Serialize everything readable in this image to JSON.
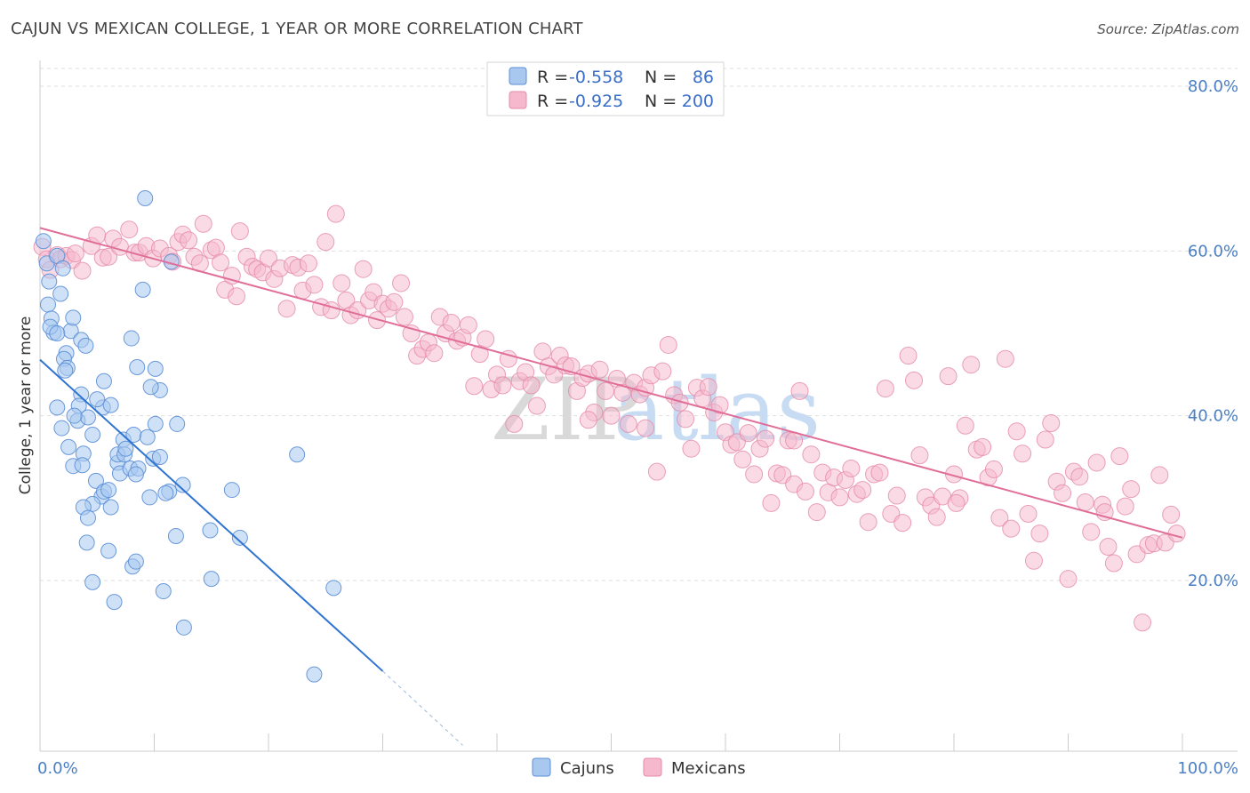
{
  "header": {
    "title": "CAJUN VS MEXICAN COLLEGE, 1 YEAR OR MORE CORRELATION CHART",
    "source": "Source: ZipAtlas.com"
  },
  "colors": {
    "cajun_fill": "#a8c8f0",
    "cajun_stroke": "#5b8fd6",
    "cajun_line": "#2f74d0",
    "mexican_fill": "#f5b8cc",
    "mexican_stroke": "#e58aa8",
    "mexican_line": "#e06e98",
    "grid": "#dddddd",
    "tick_text": "#4a7fc4"
  },
  "legend": {
    "rows": [
      {
        "r_label": "R =",
        "r_value": "-0.558",
        "n_label": "N =",
        "n_value": "86"
      },
      {
        "r_label": "R =",
        "r_value": "-0.925",
        "n_label": "N =",
        "n_value": "200"
      }
    ]
  },
  "watermark": {
    "zip": "ZIP",
    "atlas": "atlas"
  },
  "chart_data": {
    "type": "scatter",
    "title": "CAJUN VS MEXICAN COLLEGE, 1 YEAR OR MORE CORRELATION CHART",
    "xlabel": "",
    "ylabel": "College, 1 year or more",
    "xlim": [
      0,
      100
    ],
    "ylim": [
      0,
      84
    ],
    "x_tick_labels": [
      "0.0%",
      "100.0%"
    ],
    "y_ticks": [
      20,
      40,
      60,
      80
    ],
    "y_tick_labels": [
      "20.0%",
      "40.0%",
      "60.0%",
      "80.0%"
    ],
    "grid": true,
    "legend_position": "top-center",
    "bottom_legend": [
      "Cajuns",
      "Mexicans"
    ],
    "series": [
      {
        "name": "Cajuns",
        "r": -0.558,
        "n": 86,
        "trend": {
          "x0": 0,
          "y0": 46.8,
          "x1": 30,
          "y1": 9.0,
          "dash_x1": 37,
          "dash_y1": 0
        },
        "points": [
          [
            0.3,
            61.2
          ],
          [
            0.6,
            58.5
          ],
          [
            0.8,
            56.3
          ],
          [
            0.7,
            53.5
          ],
          [
            1.0,
            51.8
          ],
          [
            1.2,
            50.1
          ],
          [
            0.9,
            50.8
          ],
          [
            1.8,
            54.8
          ],
          [
            1.5,
            59.4
          ],
          [
            2.0,
            57.9
          ],
          [
            2.3,
            47.6
          ],
          [
            2.1,
            46.9
          ],
          [
            2.4,
            45.8
          ],
          [
            2.7,
            50.3
          ],
          [
            2.9,
            51.9
          ],
          [
            3.6,
            49.2
          ],
          [
            4.0,
            48.5
          ],
          [
            1.5,
            41.0
          ],
          [
            1.9,
            38.5
          ],
          [
            2.5,
            36.2
          ],
          [
            2.9,
            33.9
          ],
          [
            3.3,
            39.4
          ],
          [
            3.6,
            42.6
          ],
          [
            3.4,
            41.2
          ],
          [
            4.2,
            39.8
          ],
          [
            4.6,
            37.7
          ],
          [
            3.8,
            35.4
          ],
          [
            3.7,
            34.0
          ],
          [
            4.9,
            32.1
          ],
          [
            5.4,
            30.2
          ],
          [
            5.6,
            30.8
          ],
          [
            4.6,
            29.3
          ],
          [
            3.8,
            28.9
          ],
          [
            4.2,
            27.6
          ],
          [
            6.2,
            28.9
          ],
          [
            4.1,
            24.6
          ],
          [
            6.0,
            23.6
          ],
          [
            4.6,
            19.8
          ],
          [
            6.5,
            17.4
          ],
          [
            5.5,
            41.0
          ],
          [
            5.6,
            44.2
          ],
          [
            6.8,
            34.3
          ],
          [
            6.8,
            35.3
          ],
          [
            7.4,
            35.3
          ],
          [
            7.3,
            37.1
          ],
          [
            7.0,
            33.0
          ],
          [
            7.9,
            33.6
          ],
          [
            8.6,
            33.6
          ],
          [
            8.4,
            32.9
          ],
          [
            8.2,
            37.7
          ],
          [
            9.4,
            37.4
          ],
          [
            8.1,
            21.7
          ],
          [
            8.4,
            22.3
          ],
          [
            9.9,
            34.8
          ],
          [
            10.5,
            35.0
          ],
          [
            9.6,
            30.1
          ],
          [
            11.3,
            30.8
          ],
          [
            11.0,
            30.6
          ],
          [
            12.5,
            31.6
          ],
          [
            10.8,
            18.7
          ],
          [
            12.6,
            14.3
          ],
          [
            11.9,
            25.4
          ],
          [
            14.9,
            26.1
          ],
          [
            15.0,
            20.2
          ],
          [
            17.5,
            25.2
          ],
          [
            16.8,
            31.0
          ],
          [
            22.5,
            35.3
          ],
          [
            25.7,
            19.1
          ],
          [
            24.0,
            8.6
          ],
          [
            10.1,
            39.0
          ],
          [
            10.5,
            43.1
          ],
          [
            10.1,
            45.7
          ],
          [
            8.5,
            45.9
          ],
          [
            8.0,
            49.4
          ],
          [
            9.7,
            43.5
          ],
          [
            11.5,
            58.7
          ],
          [
            9.0,
            55.3
          ],
          [
            9.2,
            66.4
          ],
          [
            6.2,
            41.3
          ],
          [
            7.5,
            36.0
          ],
          [
            5.0,
            42.0
          ],
          [
            3.0,
            40.0
          ],
          [
            2.2,
            45.5
          ],
          [
            6.0,
            31.0
          ],
          [
            12.0,
            39.0
          ],
          [
            1.5,
            50.0
          ]
        ]
      },
      {
        "name": "Mexicans",
        "r": -0.925,
        "n": 200,
        "trend": {
          "x0": 0,
          "y0": 62.8,
          "x1": 100,
          "y1": 25.2
        },
        "points": [
          [
            0.2,
            60.5
          ],
          [
            0.6,
            59.0
          ],
          [
            0.9,
            57.7
          ],
          [
            1.5,
            59.5
          ],
          [
            1.8,
            59.0
          ],
          [
            2.3,
            59.4
          ],
          [
            2.8,
            58.9
          ],
          [
            3.1,
            59.7
          ],
          [
            3.7,
            57.6
          ],
          [
            4.5,
            60.6
          ],
          [
            5.0,
            61.9
          ],
          [
            5.5,
            59.2
          ],
          [
            6.0,
            59.3
          ],
          [
            6.4,
            61.5
          ],
          [
            7.0,
            60.5
          ],
          [
            7.8,
            62.6
          ],
          [
            8.3,
            59.8
          ],
          [
            8.7,
            59.8
          ],
          [
            9.3,
            60.6
          ],
          [
            9.9,
            59.1
          ],
          [
            10.5,
            60.3
          ],
          [
            11.3,
            59.4
          ],
          [
            11.6,
            58.7
          ],
          [
            12.1,
            61.1
          ],
          [
            12.5,
            62.0
          ],
          [
            13.0,
            61.3
          ],
          [
            13.5,
            59.3
          ],
          [
            14.0,
            58.5
          ],
          [
            14.3,
            63.3
          ],
          [
            15.0,
            60.1
          ],
          [
            15.4,
            60.4
          ],
          [
            15.8,
            58.6
          ],
          [
            16.2,
            55.3
          ],
          [
            16.8,
            57.0
          ],
          [
            17.2,
            54.5
          ],
          [
            17.5,
            62.4
          ],
          [
            18.1,
            59.3
          ],
          [
            18.6,
            58.1
          ],
          [
            19.0,
            57.8
          ],
          [
            19.5,
            57.4
          ],
          [
            20.0,
            59.1
          ],
          [
            20.5,
            56.6
          ],
          [
            21.0,
            57.9
          ],
          [
            21.6,
            53.0
          ],
          [
            22.1,
            58.3
          ],
          [
            22.6,
            58.0
          ],
          [
            23.0,
            55.2
          ],
          [
            23.5,
            58.5
          ],
          [
            24.0,
            55.9
          ],
          [
            24.6,
            53.2
          ],
          [
            25.0,
            61.1
          ],
          [
            25.5,
            52.8
          ],
          [
            25.9,
            64.5
          ],
          [
            26.4,
            56.1
          ],
          [
            26.8,
            54.0
          ],
          [
            27.2,
            52.2
          ],
          [
            27.8,
            52.8
          ],
          [
            28.3,
            57.8
          ],
          [
            28.8,
            54.0
          ],
          [
            29.2,
            55.0
          ],
          [
            29.5,
            51.6
          ],
          [
            30.0,
            53.6
          ],
          [
            30.5,
            53.0
          ],
          [
            31.0,
            53.8
          ],
          [
            31.6,
            56.1
          ],
          [
            31.9,
            52.0
          ],
          [
            32.5,
            50.0
          ],
          [
            33.0,
            47.3
          ],
          [
            33.5,
            48.1
          ],
          [
            34.0,
            48.9
          ],
          [
            34.5,
            47.6
          ],
          [
            35.0,
            52.0
          ],
          [
            35.5,
            50.0
          ],
          [
            36.0,
            51.3
          ],
          [
            36.5,
            49.1
          ],
          [
            37.0,
            49.5
          ],
          [
            37.5,
            51.0
          ],
          [
            38.0,
            43.6
          ],
          [
            38.5,
            47.5
          ],
          [
            39.0,
            49.3
          ],
          [
            39.5,
            43.2
          ],
          [
            40.0,
            45.0
          ],
          [
            40.5,
            43.7
          ],
          [
            41.0,
            46.9
          ],
          [
            41.5,
            39.0
          ],
          [
            42.0,
            44.2
          ],
          [
            42.5,
            45.3
          ],
          [
            43.0,
            43.7
          ],
          [
            43.5,
            41.2
          ],
          [
            44.0,
            47.8
          ],
          [
            44.5,
            46.0
          ],
          [
            45.0,
            45.0
          ],
          [
            45.5,
            47.3
          ],
          [
            46.0,
            46.1
          ],
          [
            46.5,
            46.0
          ],
          [
            47.0,
            43.0
          ],
          [
            47.5,
            44.6
          ],
          [
            48.0,
            45.1
          ],
          [
            48.5,
            40.4
          ],
          [
            49.0,
            45.6
          ],
          [
            49.5,
            43.0
          ],
          [
            50.0,
            40.0
          ],
          [
            50.5,
            44.5
          ],
          [
            51.0,
            42.8
          ],
          [
            51.5,
            39.0
          ],
          [
            52.0,
            44.0
          ],
          [
            52.5,
            42.6
          ],
          [
            53.0,
            43.4
          ],
          [
            53.5,
            44.9
          ],
          [
            54.0,
            33.2
          ],
          [
            54.5,
            45.4
          ],
          [
            55.0,
            48.6
          ],
          [
            55.5,
            42.5
          ],
          [
            56.0,
            41.6
          ],
          [
            56.5,
            39.6
          ],
          [
            57.0,
            36.0
          ],
          [
            57.5,
            43.4
          ],
          [
            58.0,
            42.1
          ],
          [
            58.5,
            43.5
          ],
          [
            59.0,
            40.4
          ],
          [
            59.5,
            41.3
          ],
          [
            60.0,
            38.0
          ],
          [
            60.5,
            36.5
          ],
          [
            61.0,
            36.8
          ],
          [
            61.5,
            34.7
          ],
          [
            62.0,
            37.9
          ],
          [
            62.5,
            32.9
          ],
          [
            63.0,
            36.0
          ],
          [
            63.5,
            37.2
          ],
          [
            64.0,
            29.4
          ],
          [
            64.5,
            33.0
          ],
          [
            65.0,
            32.8
          ],
          [
            65.5,
            37.0
          ],
          [
            66.0,
            31.7
          ],
          [
            66.5,
            43.0
          ],
          [
            67.0,
            30.8
          ],
          [
            67.5,
            35.3
          ],
          [
            68.0,
            28.3
          ],
          [
            68.5,
            33.1
          ],
          [
            69.0,
            30.7
          ],
          [
            69.5,
            32.5
          ],
          [
            70.0,
            30.1
          ],
          [
            70.5,
            32.2
          ],
          [
            71.0,
            33.6
          ],
          [
            71.5,
            30.5
          ],
          [
            72.0,
            31.0
          ],
          [
            72.5,
            27.1
          ],
          [
            73.0,
            32.9
          ],
          [
            73.5,
            33.1
          ],
          [
            74.0,
            43.3
          ],
          [
            74.5,
            28.1
          ],
          [
            75.0,
            30.3
          ],
          [
            75.5,
            27.0
          ],
          [
            76.0,
            47.3
          ],
          [
            76.5,
            44.3
          ],
          [
            77.0,
            35.2
          ],
          [
            77.5,
            30.1
          ],
          [
            78.0,
            29.1
          ],
          [
            78.5,
            27.7
          ],
          [
            79.0,
            30.2
          ],
          [
            79.5,
            44.8
          ],
          [
            80.0,
            32.9
          ],
          [
            80.5,
            30.0
          ],
          [
            81.0,
            38.8
          ],
          [
            81.5,
            46.2
          ],
          [
            82.0,
            35.9
          ],
          [
            82.5,
            36.2
          ],
          [
            83.0,
            32.5
          ],
          [
            83.5,
            33.5
          ],
          [
            84.0,
            27.6
          ],
          [
            84.5,
            46.9
          ],
          [
            85.0,
            26.3
          ],
          [
            85.5,
            38.1
          ],
          [
            86.0,
            35.4
          ],
          [
            86.5,
            28.1
          ],
          [
            87.0,
            22.4
          ],
          [
            87.5,
            25.7
          ],
          [
            88.0,
            37.1
          ],
          [
            88.5,
            39.1
          ],
          [
            89.0,
            32.0
          ],
          [
            89.5,
            30.6
          ],
          [
            90.0,
            20.2
          ],
          [
            90.5,
            33.2
          ],
          [
            91.0,
            32.6
          ],
          [
            91.5,
            29.5
          ],
          [
            92.0,
            25.9
          ],
          [
            92.5,
            34.3
          ],
          [
            93.0,
            29.2
          ],
          [
            93.5,
            24.1
          ],
          [
            94.0,
            22.1
          ],
          [
            94.5,
            35.1
          ],
          [
            95.0,
            29.0
          ],
          [
            95.5,
            31.1
          ],
          [
            96.0,
            23.2
          ],
          [
            96.5,
            14.9
          ],
          [
            97.0,
            24.3
          ],
          [
            97.5,
            24.5
          ],
          [
            98.0,
            32.8
          ],
          [
            98.5,
            24.6
          ],
          [
            99.0,
            28.0
          ],
          [
            99.5,
            25.7
          ],
          [
            93.2,
            28.3
          ],
          [
            80.2,
            29.4
          ],
          [
            66.0,
            37.0
          ],
          [
            53.0,
            38.5
          ],
          [
            48.0,
            39.5
          ]
        ]
      }
    ]
  }
}
